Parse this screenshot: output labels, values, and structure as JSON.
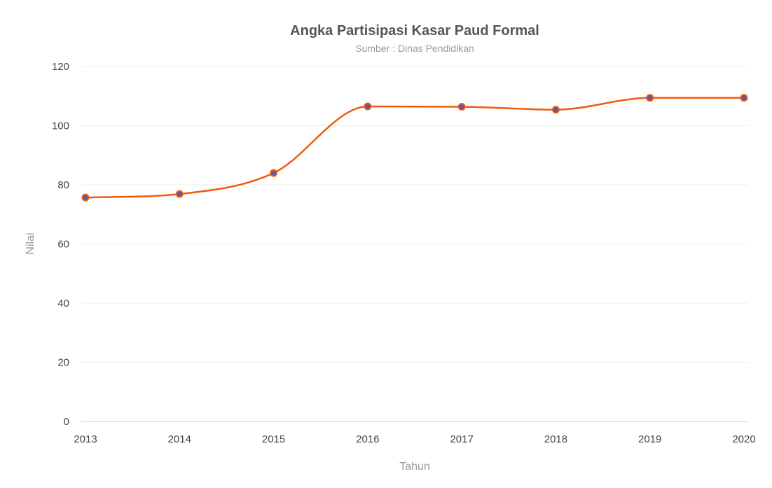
{
  "chart_data": {
    "type": "line",
    "title": "Angka Partisipasi Kasar Paud Formal",
    "subtitle": "Sumber : Dinas Pendidikan",
    "xlabel": "Tahun",
    "ylabel": "Nilai",
    "categories": [
      "2013",
      "2014",
      "2015",
      "2016",
      "2017",
      "2018",
      "2019",
      "2020"
    ],
    "series": [
      {
        "values": [
          75.7,
          76.9,
          84.0,
          106.5,
          106.4,
          105.4,
          109.4,
          109.4
        ]
      }
    ],
    "ylim": [
      0,
      120
    ],
    "yticks": [
      0,
      20,
      40,
      60,
      80,
      100,
      120
    ],
    "grid": true,
    "legend": "none",
    "colors": {
      "line": "#f15a0e",
      "marker_fill": "#5a5aa8",
      "marker_stroke": "#f15a0e"
    }
  }
}
